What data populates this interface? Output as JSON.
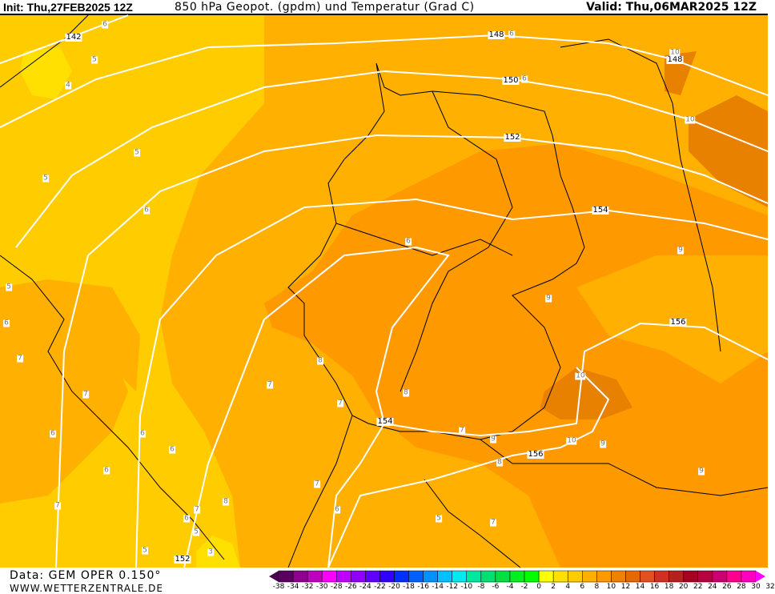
{
  "header": {
    "init": "Init: Thu,27FEB2025 12Z",
    "title": "850 hPa Geopot. (gpdm) und Temperatur (Grad C)",
    "valid": "Valid: Thu,06MAR2025 12Z"
  },
  "footer": {
    "data_source": "Data: GEM OPER 0.150°",
    "website": "WWW.WETTERZENTRALE.DE"
  },
  "colors": {
    "t2_4": "#ffe000",
    "t4_6": "#ffcc00",
    "t6_8": "#ffb000",
    "t8_10": "#ff9900",
    "t10_12": "#e88000",
    "geopotential_line": "#ffffff",
    "border": "#000000"
  },
  "geopotential_labels": [
    "142",
    "148",
    "148",
    "150",
    "152",
    "154",
    "154",
    "156",
    "156",
    "152"
  ],
  "temperature_labels": [
    "6",
    "5",
    "4",
    "5",
    "5",
    "6",
    "5",
    "6",
    "7",
    "7",
    "6",
    "6",
    "6",
    "6",
    "7",
    "6",
    "7",
    "5",
    "5",
    "3",
    "8",
    "8",
    "7",
    "7",
    "8",
    "7",
    "9",
    "6",
    "9",
    "9",
    "10",
    "10",
    "10",
    "10",
    "9",
    "9",
    "8",
    "7",
    "6",
    "7",
    "5",
    "6",
    "6"
  ],
  "legend": {
    "labels": [
      "-38",
      "-34",
      "-32",
      "-30",
      "-28",
      "-26",
      "-24",
      "-22",
      "-20",
      "-18",
      "-16",
      "-14",
      "-12",
      "-10",
      "-8",
      "-6",
      "-4",
      "-2",
      "0",
      "2",
      "4",
      "6",
      "8",
      "10",
      "12",
      "14",
      "16",
      "18",
      "20",
      "22",
      "24",
      "26",
      "28",
      "30",
      "32"
    ],
    "colors": [
      "#4a0050",
      "#5a0060",
      "#900090",
      "#c000c0",
      "#ff00ff",
      "#c000ff",
      "#9000ff",
      "#6000ff",
      "#3000ff",
      "#0030ff",
      "#0060ff",
      "#0090ff",
      "#00c0ff",
      "#00e8f0",
      "#00e8a0",
      "#00e070",
      "#00e040",
      "#00f020",
      "#00ff00",
      "#ffff00",
      "#ffe000",
      "#ffcc00",
      "#ffb000",
      "#ff9900",
      "#f08000",
      "#e86800",
      "#e05020",
      "#d03020",
      "#b82020",
      "#a80020",
      "#b80040",
      "#c80070",
      "#ff0090",
      "#ff00c0",
      "#ff00ff"
    ]
  }
}
